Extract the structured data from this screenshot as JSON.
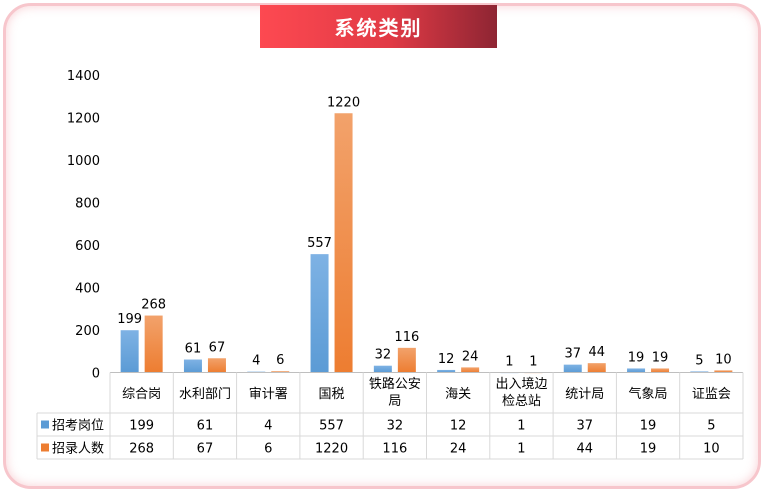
{
  "title": "系统类别",
  "chart_data": {
    "type": "bar",
    "title": "系统类别",
    "categories": [
      "综合岗",
      "水利部门",
      "审计署",
      "国税",
      "铁路公安局",
      "海关",
      "出入境边检总站",
      "统计局",
      "气象局",
      "证监会"
    ],
    "category_lines": [
      [
        "综合岗"
      ],
      [
        "水利部门"
      ],
      [
        "审计署"
      ],
      [
        "国税"
      ],
      [
        "铁路公安",
        "局"
      ],
      [
        "海关"
      ],
      [
        "出入境边",
        "检总站"
      ],
      [
        "统计局"
      ],
      [
        "气象局"
      ],
      [
        "证监会"
      ]
    ],
    "series": [
      {
        "name": "招考岗位",
        "color": "#5b9bd5",
        "values": [
          199,
          61,
          4,
          557,
          32,
          12,
          1,
          37,
          19,
          5
        ]
      },
      {
        "name": "招录人数",
        "color": "#ed7d31",
        "values": [
          268,
          67,
          6,
          1220,
          116,
          24,
          1,
          44,
          19,
          10
        ]
      }
    ],
    "ylim": [
      0,
      1400
    ],
    "yticks": [
      "0",
      "200",
      "400",
      "600",
      "800",
      "1000",
      "1200",
      "1400"
    ],
    "xlabel": "",
    "ylabel": "",
    "grid": false,
    "data_table": true
  }
}
